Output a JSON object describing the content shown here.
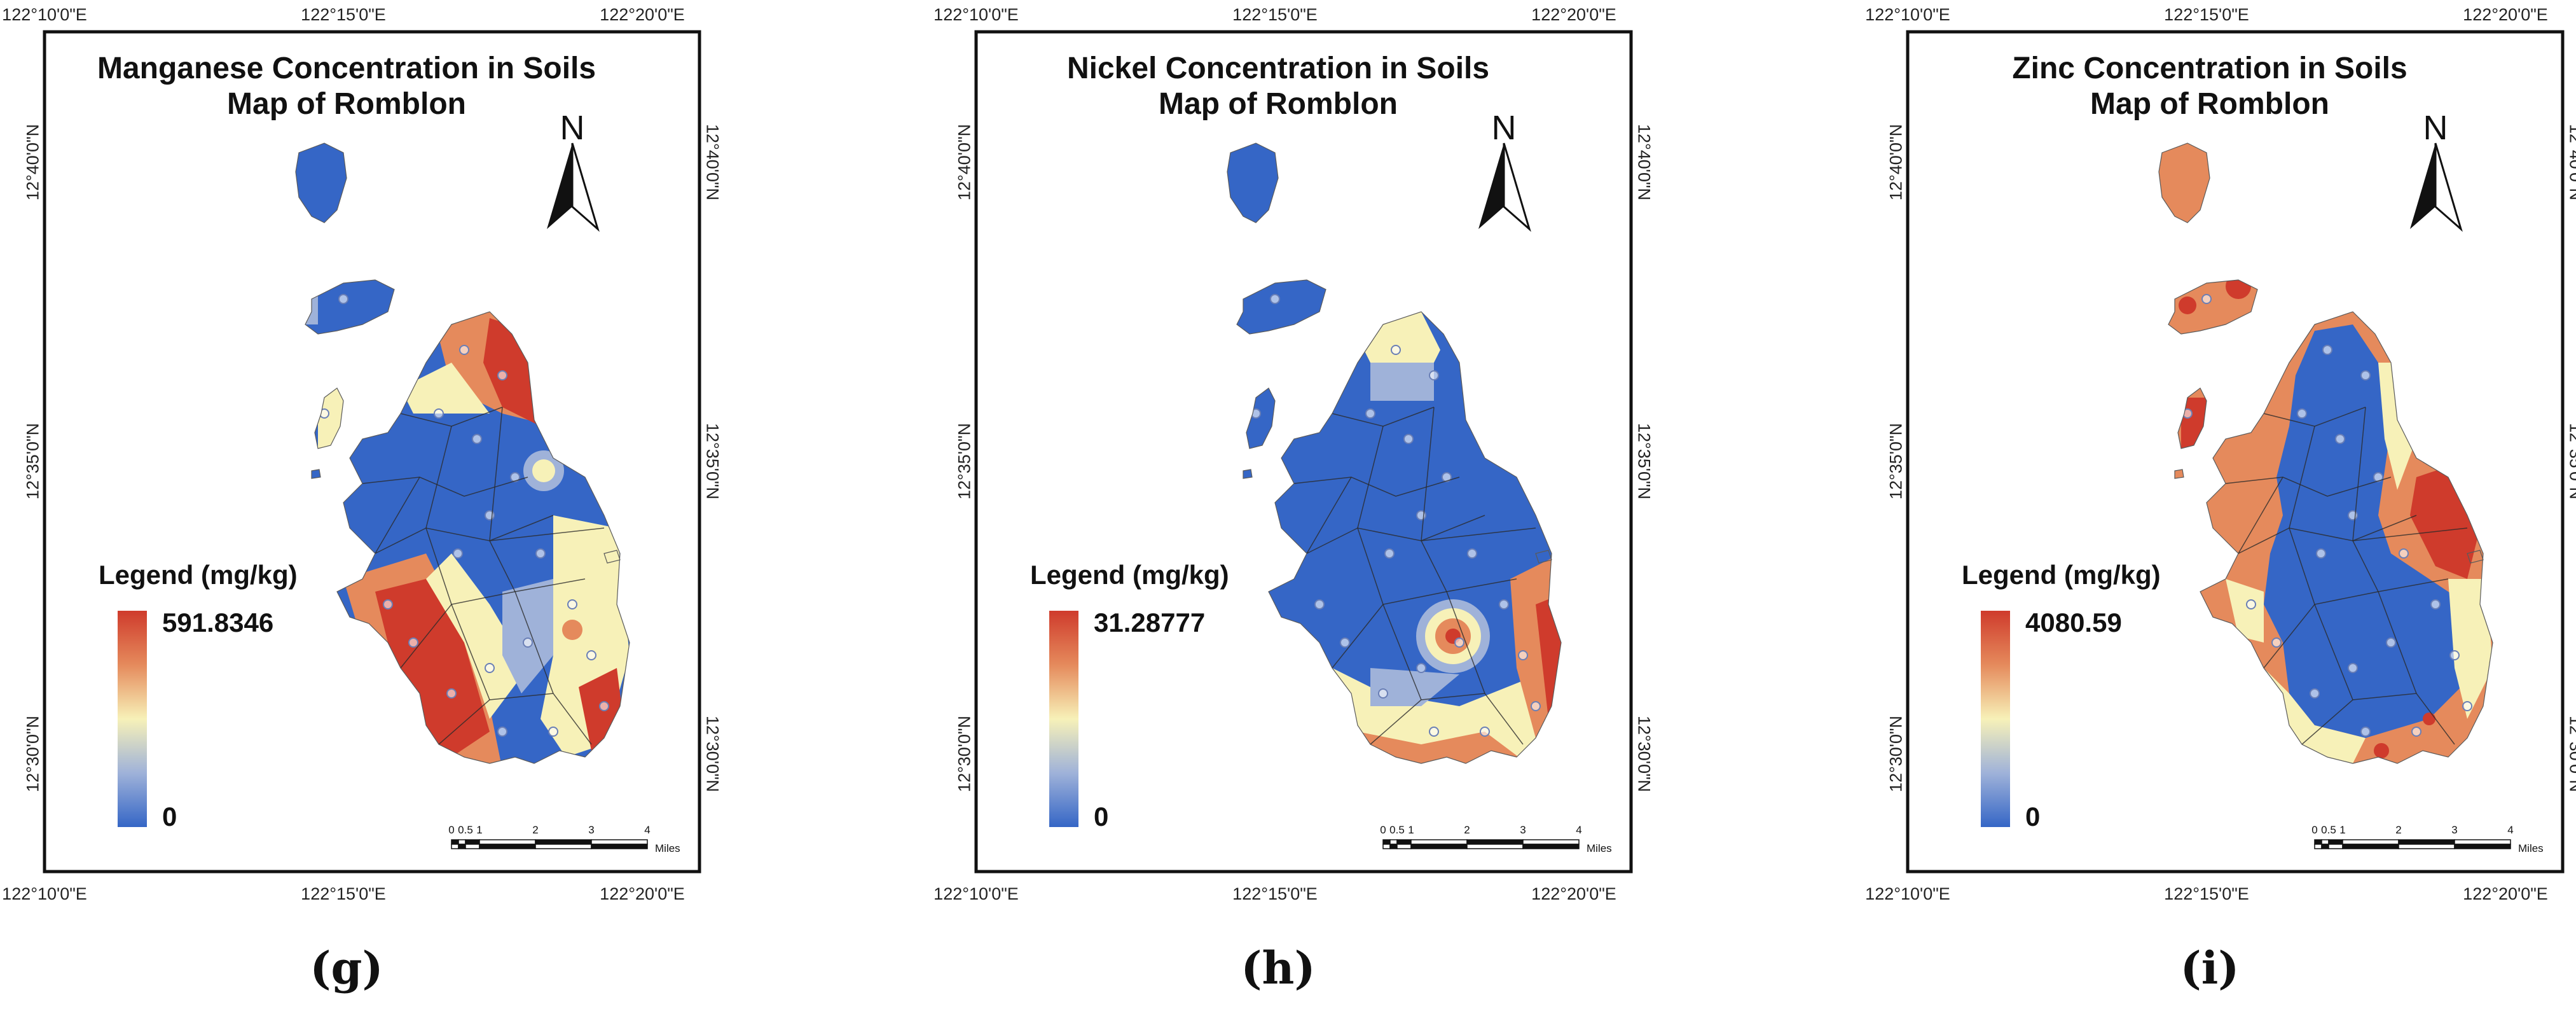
{
  "panels": [
    {
      "id": "g",
      "caption": "(g)",
      "title_line1": "Manganese Concentration in Soils",
      "title_line2": "Map of Romblon",
      "legend_title": "Legend (mg/kg)",
      "legend_max": "591.8346",
      "legend_min": "0",
      "pattern": "manganese"
    },
    {
      "id": "h",
      "caption": "(h)",
      "title_line1": "Nickel Concentration in Soils",
      "title_line2": "Map of Romblon",
      "legend_title": "Legend (mg/kg)",
      "legend_max": "31.28777",
      "legend_min": "0",
      "pattern": "nickel"
    },
    {
      "id": "i",
      "caption": "(i)",
      "title_line1": "Zinc Concentration in Soils",
      "title_line2": "Map of Romblon",
      "legend_title": "Legend (mg/kg)",
      "legend_max": "4080.59",
      "legend_min": "0",
      "pattern": "zinc"
    }
  ],
  "lon_ticks": [
    "122°10'0\"E",
    "122°15'0\"E",
    "122°20'0\"E"
  ],
  "lat_ticks": [
    "12°40'0\"N",
    "12°35'0\"N",
    "12°30'0\"N"
  ],
  "north_label": "N",
  "scale_bar": {
    "labels": [
      "0",
      "0.5",
      "1",
      "2",
      "3",
      "4"
    ],
    "unit": "Miles"
  },
  "colors": {
    "high": "#cf3b2c",
    "mid_high": "#e58a5c",
    "mid": "#f7f1b8",
    "mid_low": "#9fb2d9",
    "low": "#3566c6"
  }
}
